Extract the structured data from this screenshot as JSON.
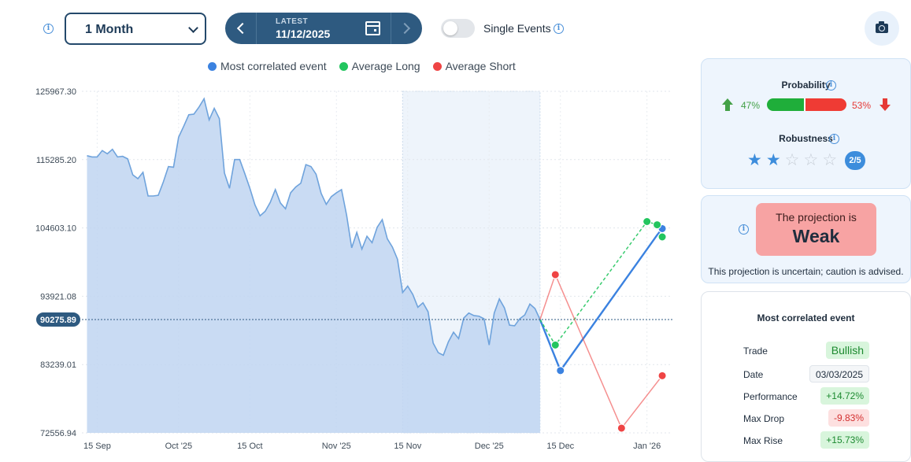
{
  "toolbar": {
    "period_value": "1 Month",
    "latest_label": "LATEST",
    "latest_date": "11/12/2025",
    "single_events_label": "Single Events",
    "single_events_on": false
  },
  "legend": [
    {
      "label": "Most correlated event",
      "color": "#3b82e0"
    },
    {
      "label": "Average Long",
      "color": "#22c55e"
    },
    {
      "label": "Average Short",
      "color": "#ef4444"
    }
  ],
  "chart_data": {
    "type": "area",
    "title": "",
    "xlabel": "",
    "ylabel": "",
    "ylim": [
      72556.94,
      125967.3
    ],
    "y_ticks": [
      "125967.30",
      "115285.20",
      "104603.10",
      "93921.08",
      "83239.01",
      "72556.94"
    ],
    "x_ticks": [
      "15 Sep",
      "Oct '25",
      "15 Oct",
      "Nov '25",
      "15 Nov",
      "Dec '25",
      "15 Dec",
      "Jan '26"
    ],
    "current_value_label": "90275.89",
    "current_value": 90275.89,
    "highlight_range": [
      "14 Nov 2025",
      "11 Dec 2025"
    ],
    "series": [
      {
        "name": "Price",
        "color": "#6fa3dc",
        "points": [
          [
            "2025-09-13",
            115900
          ],
          [
            "2025-09-14",
            115700
          ],
          [
            "2025-09-15",
            115700
          ],
          [
            "2025-09-16",
            116700
          ],
          [
            "2025-09-17",
            116200
          ],
          [
            "2025-09-18",
            116900
          ],
          [
            "2025-09-19",
            115700
          ],
          [
            "2025-09-20",
            115800
          ],
          [
            "2025-09-21",
            115400
          ],
          [
            "2025-09-22",
            112900
          ],
          [
            "2025-09-23",
            112300
          ],
          [
            "2025-09-24",
            113300
          ],
          [
            "2025-09-25",
            109600
          ],
          [
            "2025-09-26",
            109600
          ],
          [
            "2025-09-27",
            109700
          ],
          [
            "2025-09-28",
            111800
          ],
          [
            "2025-09-29",
            114200
          ],
          [
            "2025-09-30",
            114100
          ],
          [
            "2025-10-01",
            118800
          ],
          [
            "2025-10-02",
            120500
          ],
          [
            "2025-10-03",
            122300
          ],
          [
            "2025-10-04",
            122400
          ],
          [
            "2025-10-05",
            123500
          ],
          [
            "2025-10-06",
            124800
          ],
          [
            "2025-10-07",
            121500
          ],
          [
            "2025-10-08",
            123300
          ],
          [
            "2025-10-09",
            121700
          ],
          [
            "2025-10-10",
            113200
          ],
          [
            "2025-10-11",
            110800
          ],
          [
            "2025-10-12",
            115300
          ],
          [
            "2025-10-13",
            115300
          ],
          [
            "2025-10-14",
            113100
          ],
          [
            "2025-10-15",
            110800
          ],
          [
            "2025-10-16",
            108200
          ],
          [
            "2025-10-17",
            106500
          ],
          [
            "2025-10-18",
            107200
          ],
          [
            "2025-10-19",
            108600
          ],
          [
            "2025-10-20",
            110600
          ],
          [
            "2025-10-21",
            108500
          ],
          [
            "2025-10-22",
            107600
          ],
          [
            "2025-10-23",
            110100
          ],
          [
            "2025-10-24",
            111000
          ],
          [
            "2025-10-25",
            111600
          ],
          [
            "2025-10-26",
            114500
          ],
          [
            "2025-10-27",
            114200
          ],
          [
            "2025-10-28",
            113000
          ],
          [
            "2025-10-29",
            110000
          ],
          [
            "2025-10-30",
            108300
          ],
          [
            "2025-10-31",
            109500
          ],
          [
            "2025-11-01",
            110100
          ],
          [
            "2025-11-02",
            110600
          ],
          [
            "2025-11-03",
            106600
          ],
          [
            "2025-11-04",
            101500
          ],
          [
            "2025-11-05",
            103900
          ],
          [
            "2025-11-06",
            101300
          ],
          [
            "2025-11-07",
            103300
          ],
          [
            "2025-11-08",
            102300
          ],
          [
            "2025-11-09",
            104700
          ],
          [
            "2025-11-10",
            105900
          ],
          [
            "2025-11-11",
            102900
          ],
          [
            "2025-11-12",
            101600
          ],
          [
            "2025-11-13",
            99700
          ],
          [
            "2025-11-14",
            94500
          ],
          [
            "2025-11-15",
            95500
          ],
          [
            "2025-11-16",
            94200
          ],
          [
            "2025-11-17",
            92200
          ],
          [
            "2025-11-18",
            92900
          ],
          [
            "2025-11-19",
            91500
          ],
          [
            "2025-11-20",
            86600
          ],
          [
            "2025-11-21",
            85100
          ],
          [
            "2025-11-22",
            84700
          ],
          [
            "2025-11-23",
            86800
          ],
          [
            "2025-11-24",
            88300
          ],
          [
            "2025-11-25",
            87300
          ],
          [
            "2025-11-26",
            90500
          ],
          [
            "2025-11-27",
            91300
          ],
          [
            "2025-11-28",
            90900
          ],
          [
            "2025-11-29",
            90800
          ],
          [
            "2025-11-30",
            90400
          ],
          [
            "2025-12-01",
            86300
          ],
          [
            "2025-12-02",
            91300
          ],
          [
            "2025-12-03",
            93500
          ],
          [
            "2025-12-04",
            92100
          ],
          [
            "2025-12-05",
            89400
          ],
          [
            "2025-12-06",
            89300
          ],
          [
            "2025-12-07",
            90400
          ],
          [
            "2025-12-08",
            91000
          ],
          [
            "2025-12-09",
            92700
          ],
          [
            "2025-12-10",
            92000
          ],
          [
            "2025-12-11",
            90275.89
          ]
        ]
      },
      {
        "name": "Most correlated event",
        "color": "#3b82e0",
        "points": [
          [
            "2025-12-11",
            90275.89
          ],
          [
            "2025-12-15",
            82300
          ],
          [
            "2026-01-03",
            103500
          ],
          [
            "2026-01-04",
            104500
          ]
        ]
      },
      {
        "name": "Average Long",
        "color": "#22c55e",
        "points": [
          [
            "2025-12-11",
            90275.89
          ],
          [
            "2025-12-14",
            86300
          ],
          [
            "2026-01-01",
            105600
          ],
          [
            "2026-01-03",
            105100
          ],
          [
            "2026-01-04",
            103200
          ]
        ]
      },
      {
        "name": "Average Short",
        "color": "#ef4444",
        "points": [
          [
            "2025-12-11",
            90275.89
          ],
          [
            "2025-12-14",
            97300
          ],
          [
            "2025-12-27",
            73300
          ],
          [
            "2026-01-04",
            81500
          ]
        ]
      }
    ]
  },
  "probability": {
    "title": "Probability",
    "long_pct": "47%",
    "short_pct": "53%",
    "long_fraction": 0.47
  },
  "robustness": {
    "title": "Robustness",
    "score": 2,
    "max": 5,
    "badge": "2/5"
  },
  "projection": {
    "prefix": "The projection is",
    "strength": "Weak",
    "note": "This projection is uncertain; caution is advised."
  },
  "event": {
    "title": "Most correlated event",
    "rows": [
      {
        "key": "Trade",
        "value": "Bullish",
        "style": "bull"
      },
      {
        "key": "Date",
        "value": "03/03/2025",
        "style": "plain"
      },
      {
        "key": "Performance",
        "value": "+14.72%",
        "style": "pos"
      },
      {
        "key": "Max Drop",
        "value": "-9.83%",
        "style": "neg"
      },
      {
        "key": "Max Rise",
        "value": "+15.73%",
        "style": "pos"
      }
    ]
  }
}
